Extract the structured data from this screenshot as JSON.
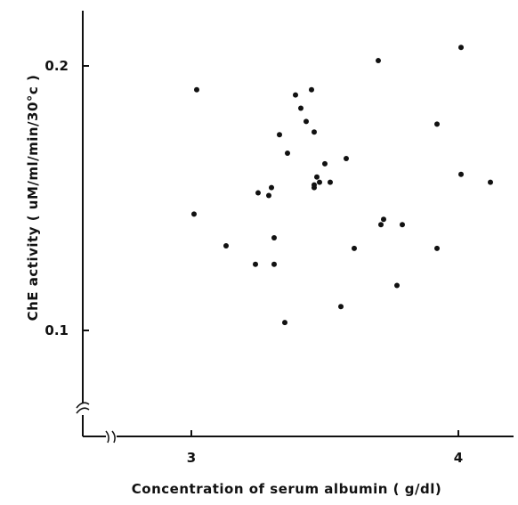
{
  "chart_data": {
    "type": "scatter",
    "title": "",
    "xlabel": "Concentration of serum albumin ( g/dl)",
    "ylabel": "ChE activity ( uM/ml/min/30°c )",
    "xlim": [
      2.6,
      4.2
    ],
    "ylim": [
      0.07,
      0.22
    ],
    "xticks": [
      3,
      4
    ],
    "xtick_labels": [
      "3",
      "4"
    ],
    "yticks": [
      0.1,
      0.2
    ],
    "ytick_labels": [
      "0.1",
      "0.2"
    ],
    "axis_breaks": [
      "x",
      "y"
    ],
    "grid": false,
    "points": [
      {
        "x": 3.02,
        "y": 0.191
      },
      {
        "x": 3.01,
        "y": 0.144
      },
      {
        "x": 3.13,
        "y": 0.132
      },
      {
        "x": 3.24,
        "y": 0.125
      },
      {
        "x": 3.25,
        "y": 0.152
      },
      {
        "x": 3.29,
        "y": 0.151
      },
      {
        "x": 3.3,
        "y": 0.154
      },
      {
        "x": 3.31,
        "y": 0.135
      },
      {
        "x": 3.31,
        "y": 0.125
      },
      {
        "x": 3.33,
        "y": 0.174
      },
      {
        "x": 3.35,
        "y": 0.103
      },
      {
        "x": 3.36,
        "y": 0.167
      },
      {
        "x": 3.39,
        "y": 0.189
      },
      {
        "x": 3.41,
        "y": 0.184
      },
      {
        "x": 3.43,
        "y": 0.179
      },
      {
        "x": 3.45,
        "y": 0.191
      },
      {
        "x": 3.46,
        "y": 0.175
      },
      {
        "x": 3.46,
        "y": 0.155
      },
      {
        "x": 3.46,
        "y": 0.154
      },
      {
        "x": 3.47,
        "y": 0.158
      },
      {
        "x": 3.48,
        "y": 0.156
      },
      {
        "x": 3.5,
        "y": 0.163
      },
      {
        "x": 3.52,
        "y": 0.156
      },
      {
        "x": 3.56,
        "y": 0.109
      },
      {
        "x": 3.58,
        "y": 0.165
      },
      {
        "x": 3.61,
        "y": 0.131
      },
      {
        "x": 3.7,
        "y": 0.202
      },
      {
        "x": 3.71,
        "y": 0.14
      },
      {
        "x": 3.72,
        "y": 0.142
      },
      {
        "x": 3.77,
        "y": 0.117
      },
      {
        "x": 3.79,
        "y": 0.14
      },
      {
        "x": 3.92,
        "y": 0.131
      },
      {
        "x": 3.92,
        "y": 0.178
      },
      {
        "x": 4.01,
        "y": 0.207
      },
      {
        "x": 4.01,
        "y": 0.159
      },
      {
        "x": 4.12,
        "y": 0.156
      }
    ]
  }
}
